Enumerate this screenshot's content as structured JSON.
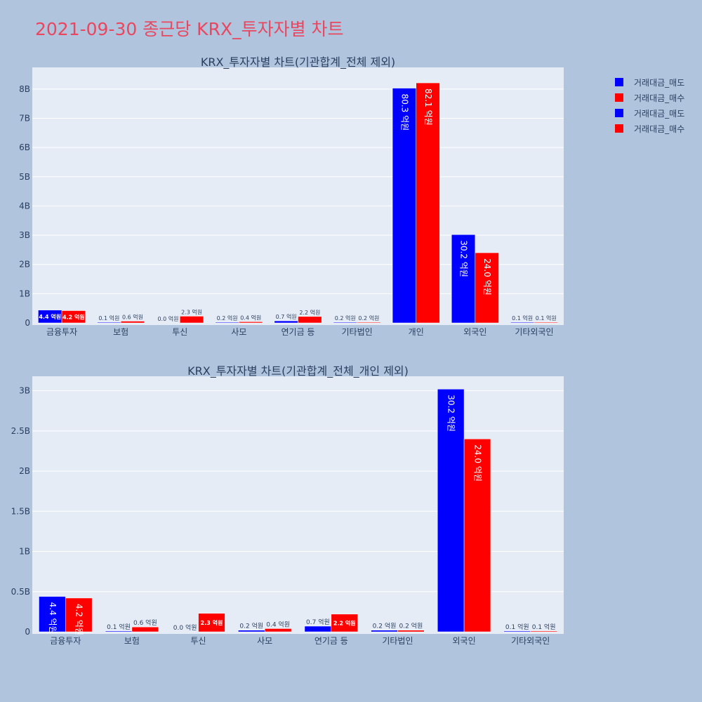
{
  "title": "2021-09-30 종근당 KRX_투자자별 차트",
  "colors": {
    "sell": "#0000ff",
    "buy": "#ff0000",
    "plot_bg": "#e5ecf6",
    "page_bg": "#b0c4de",
    "title": "#e8475f"
  },
  "legend": [
    {
      "label": "거래대금_매도",
      "color": "#0000ff"
    },
    {
      "label": "거래대금_매수",
      "color": "#ff0000"
    },
    {
      "label": "거래대금_매도",
      "color": "#0000ff"
    },
    {
      "label": "거래대금_매수",
      "color": "#ff0000"
    }
  ],
  "chart_data": [
    {
      "type": "bar",
      "title": "KRX_투자자별 차트(기관합계_전체 제외)",
      "categories": [
        "금융투자",
        "보험",
        "투신",
        "사모",
        "연기금 등",
        "기타법인",
        "개인",
        "외국인",
        "기타외국인"
      ],
      "series": [
        {
          "name": "거래대금_매도",
          "values": [
            440000000,
            10000000,
            0,
            20000000,
            70000000,
            20000000,
            8030000000,
            3020000000,
            10000000
          ],
          "labels": [
            "4.4 억원",
            "0.1 억원",
            "0.0 억원",
            "0.2 억원",
            "0.7 억원",
            "0.2 억원",
            "80.3 억원",
            "30.2 억원",
            "0.1 억원"
          ]
        },
        {
          "name": "거래대금_매수",
          "values": [
            420000000,
            60000000,
            230000000,
            40000000,
            220000000,
            20000000,
            8210000000,
            2400000000,
            10000000
          ],
          "labels": [
            "4.2 억원",
            "0.6 억원",
            "2.3 억원",
            "0.4 억원",
            "2.2 억원",
            "0.2 억원",
            "82.1 억원",
            "24.0 억원",
            "0.1 억원"
          ]
        }
      ],
      "yticks": [
        0,
        1000000000,
        2000000000,
        3000000000,
        4000000000,
        5000000000,
        6000000000,
        7000000000,
        8000000000
      ],
      "ytick_labels": [
        "0",
        "1B",
        "2B",
        "3B",
        "4B",
        "5B",
        "6B",
        "7B",
        "8B"
      ],
      "ylim": [
        0,
        8740000000
      ]
    },
    {
      "type": "bar",
      "title": "KRX_투자자별 차트(기관합계_전체_개인 제외)",
      "categories": [
        "금융투자",
        "보험",
        "투신",
        "사모",
        "연기금 등",
        "기타법인",
        "외국인",
        "기타외국인"
      ],
      "series": [
        {
          "name": "거래대금_매도",
          "values": [
            440000000,
            10000000,
            0,
            20000000,
            70000000,
            20000000,
            3020000000,
            10000000
          ],
          "labels": [
            "4.4 억원",
            "0.1 억원",
            "0.0 억원",
            "0.2 억원",
            "0.7 억원",
            "0.2 억원",
            "30.2 억원",
            "0.1 억원"
          ]
        },
        {
          "name": "거래대금_매수",
          "values": [
            420000000,
            60000000,
            230000000,
            40000000,
            220000000,
            20000000,
            2400000000,
            10000000
          ],
          "labels": [
            "4.2 억원",
            "0.6 억원",
            "2.3 억원",
            "0.4 억원",
            "2.2 억원",
            "0.2 억원",
            "24.0 억원",
            "0.1 억원"
          ]
        }
      ],
      "yticks": [
        0,
        500000000,
        1000000000,
        1500000000,
        2000000000,
        2500000000,
        3000000000
      ],
      "ytick_labels": [
        "0",
        "0.5B",
        "1B",
        "1.5B",
        "2B",
        "2.5B",
        "3B"
      ],
      "ylim": [
        0,
        3180000000
      ]
    }
  ]
}
